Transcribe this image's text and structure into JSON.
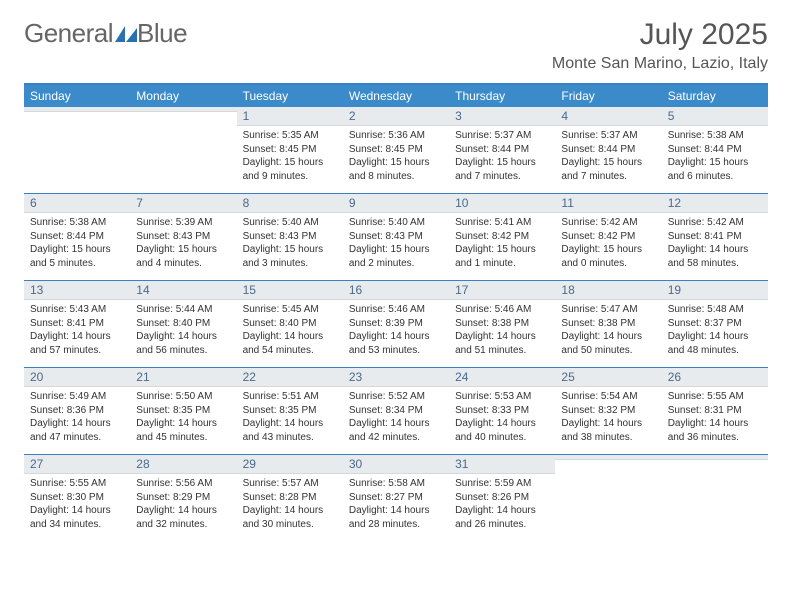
{
  "brand": {
    "part1": "General",
    "part2": "Blue"
  },
  "title": "July 2025",
  "location": "Monte San Marino, Lazio, Italy",
  "colors": {
    "header_bg": "#3b8ac9",
    "border": "#3b7fc4",
    "daynum_bg": "#e8ebee",
    "daynum_text": "#4a6a8a",
    "body_text": "#333333",
    "title_text": "#555555"
  },
  "weekdays": [
    "Sunday",
    "Monday",
    "Tuesday",
    "Wednesday",
    "Thursday",
    "Friday",
    "Saturday"
  ],
  "weeks": [
    [
      null,
      null,
      {
        "n": "1",
        "sunrise": "5:35 AM",
        "sunset": "8:45 PM",
        "daylight": "15 hours and 9 minutes."
      },
      {
        "n": "2",
        "sunrise": "5:36 AM",
        "sunset": "8:45 PM",
        "daylight": "15 hours and 8 minutes."
      },
      {
        "n": "3",
        "sunrise": "5:37 AM",
        "sunset": "8:44 PM",
        "daylight": "15 hours and 7 minutes."
      },
      {
        "n": "4",
        "sunrise": "5:37 AM",
        "sunset": "8:44 PM",
        "daylight": "15 hours and 7 minutes."
      },
      {
        "n": "5",
        "sunrise": "5:38 AM",
        "sunset": "8:44 PM",
        "daylight": "15 hours and 6 minutes."
      }
    ],
    [
      {
        "n": "6",
        "sunrise": "5:38 AM",
        "sunset": "8:44 PM",
        "daylight": "15 hours and 5 minutes."
      },
      {
        "n": "7",
        "sunrise": "5:39 AM",
        "sunset": "8:43 PM",
        "daylight": "15 hours and 4 minutes."
      },
      {
        "n": "8",
        "sunrise": "5:40 AM",
        "sunset": "8:43 PM",
        "daylight": "15 hours and 3 minutes."
      },
      {
        "n": "9",
        "sunrise": "5:40 AM",
        "sunset": "8:43 PM",
        "daylight": "15 hours and 2 minutes."
      },
      {
        "n": "10",
        "sunrise": "5:41 AM",
        "sunset": "8:42 PM",
        "daylight": "15 hours and 1 minute."
      },
      {
        "n": "11",
        "sunrise": "5:42 AM",
        "sunset": "8:42 PM",
        "daylight": "15 hours and 0 minutes."
      },
      {
        "n": "12",
        "sunrise": "5:42 AM",
        "sunset": "8:41 PM",
        "daylight": "14 hours and 58 minutes."
      }
    ],
    [
      {
        "n": "13",
        "sunrise": "5:43 AM",
        "sunset": "8:41 PM",
        "daylight": "14 hours and 57 minutes."
      },
      {
        "n": "14",
        "sunrise": "5:44 AM",
        "sunset": "8:40 PM",
        "daylight": "14 hours and 56 minutes."
      },
      {
        "n": "15",
        "sunrise": "5:45 AM",
        "sunset": "8:40 PM",
        "daylight": "14 hours and 54 minutes."
      },
      {
        "n": "16",
        "sunrise": "5:46 AM",
        "sunset": "8:39 PM",
        "daylight": "14 hours and 53 minutes."
      },
      {
        "n": "17",
        "sunrise": "5:46 AM",
        "sunset": "8:38 PM",
        "daylight": "14 hours and 51 minutes."
      },
      {
        "n": "18",
        "sunrise": "5:47 AM",
        "sunset": "8:38 PM",
        "daylight": "14 hours and 50 minutes."
      },
      {
        "n": "19",
        "sunrise": "5:48 AM",
        "sunset": "8:37 PM",
        "daylight": "14 hours and 48 minutes."
      }
    ],
    [
      {
        "n": "20",
        "sunrise": "5:49 AM",
        "sunset": "8:36 PM",
        "daylight": "14 hours and 47 minutes."
      },
      {
        "n": "21",
        "sunrise": "5:50 AM",
        "sunset": "8:35 PM",
        "daylight": "14 hours and 45 minutes."
      },
      {
        "n": "22",
        "sunrise": "5:51 AM",
        "sunset": "8:35 PM",
        "daylight": "14 hours and 43 minutes."
      },
      {
        "n": "23",
        "sunrise": "5:52 AM",
        "sunset": "8:34 PM",
        "daylight": "14 hours and 42 minutes."
      },
      {
        "n": "24",
        "sunrise": "5:53 AM",
        "sunset": "8:33 PM",
        "daylight": "14 hours and 40 minutes."
      },
      {
        "n": "25",
        "sunrise": "5:54 AM",
        "sunset": "8:32 PM",
        "daylight": "14 hours and 38 minutes."
      },
      {
        "n": "26",
        "sunrise": "5:55 AM",
        "sunset": "8:31 PM",
        "daylight": "14 hours and 36 minutes."
      }
    ],
    [
      {
        "n": "27",
        "sunrise": "5:55 AM",
        "sunset": "8:30 PM",
        "daylight": "14 hours and 34 minutes."
      },
      {
        "n": "28",
        "sunrise": "5:56 AM",
        "sunset": "8:29 PM",
        "daylight": "14 hours and 32 minutes."
      },
      {
        "n": "29",
        "sunrise": "5:57 AM",
        "sunset": "8:28 PM",
        "daylight": "14 hours and 30 minutes."
      },
      {
        "n": "30",
        "sunrise": "5:58 AM",
        "sunset": "8:27 PM",
        "daylight": "14 hours and 28 minutes."
      },
      {
        "n": "31",
        "sunrise": "5:59 AM",
        "sunset": "8:26 PM",
        "daylight": "14 hours and 26 minutes."
      },
      null,
      null
    ]
  ],
  "labels": {
    "sunrise": "Sunrise:",
    "sunset": "Sunset:",
    "daylight": "Daylight:"
  }
}
